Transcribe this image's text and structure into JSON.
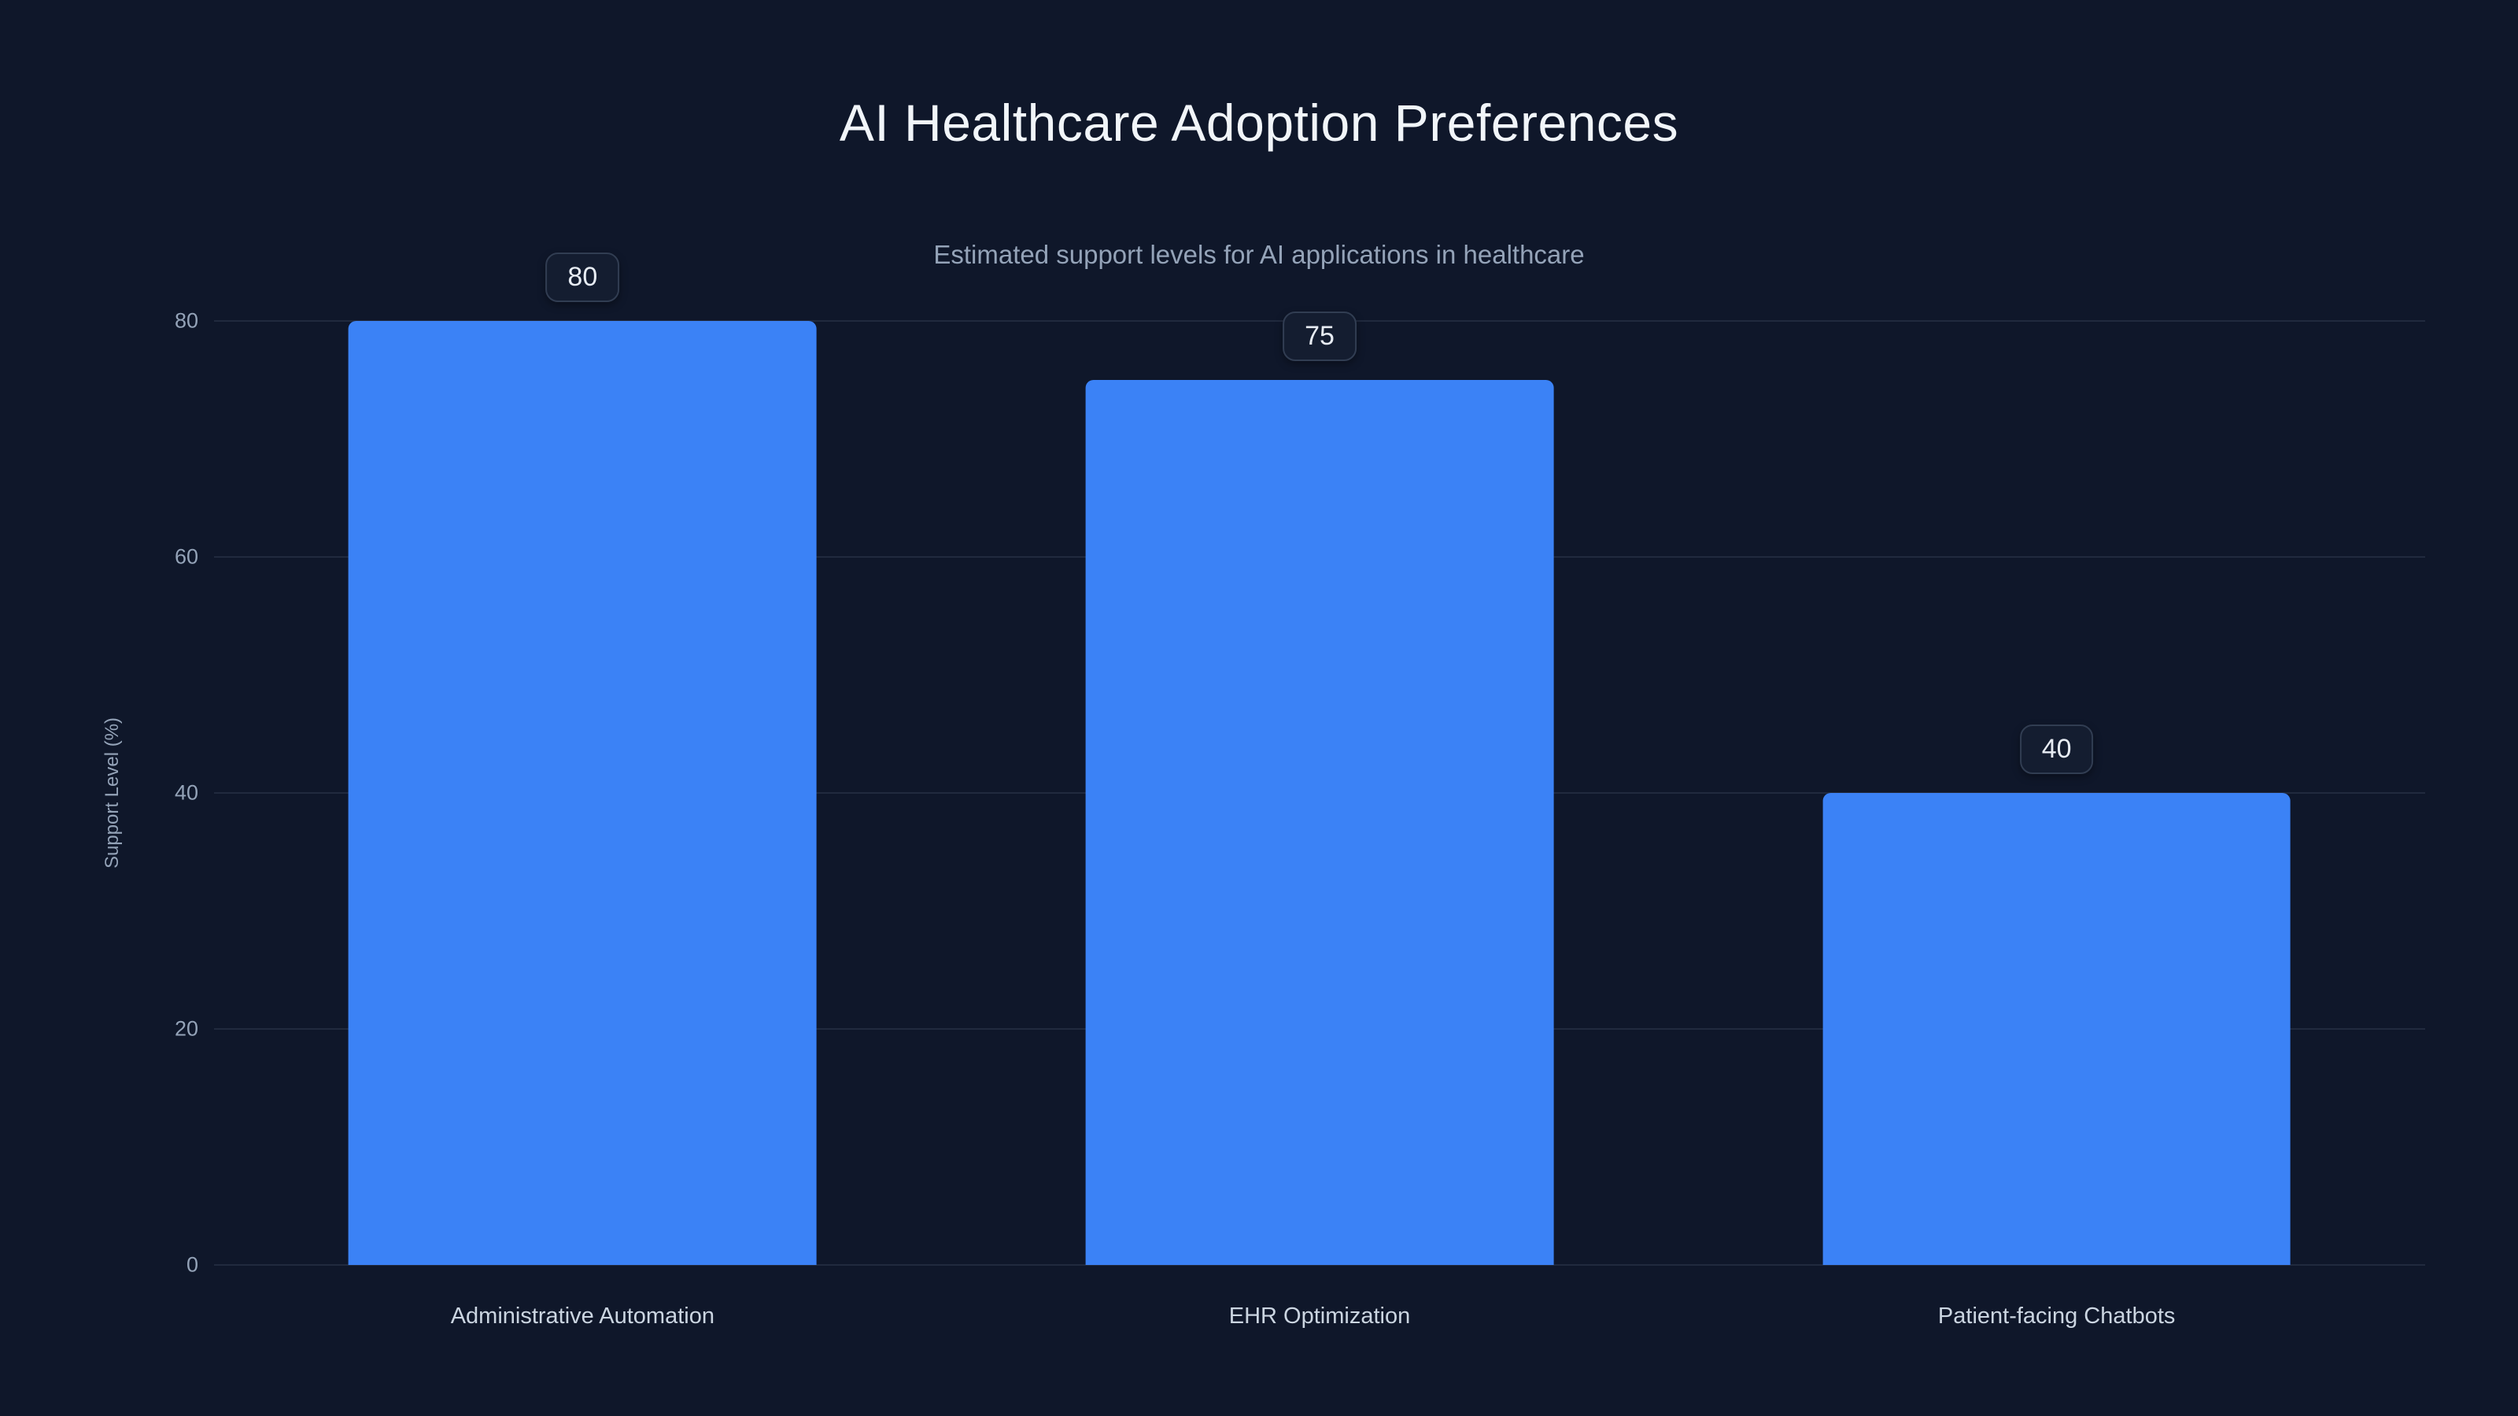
{
  "chart_data": {
    "type": "bar",
    "title": "AI Healthcare Adoption Preferences",
    "subtitle": "Estimated support levels for AI applications in healthcare",
    "categories": [
      "Administrative Automation",
      "EHR Optimization",
      "Patient-facing Chatbots"
    ],
    "values": [
      80,
      75,
      40
    ],
    "value_labels": [
      "80",
      "75",
      "40"
    ],
    "xlabel": "",
    "ylabel": "Support Level (%)",
    "ylim": [
      0,
      80
    ],
    "yticks": [
      0,
      20,
      40,
      60,
      80
    ],
    "grid": true,
    "legend": "none",
    "bar_color": "#3b82f6",
    "background": "#0f172a"
  },
  "colors": {
    "accent": "#3b82f6",
    "background": "#0f172a",
    "grid": "rgba(148,163,184,0.14)",
    "title_text": "#f1f5f9",
    "muted_text": "#94a3b8",
    "category_text": "#cbd5e1",
    "pill_bg": "#141d30",
    "pill_border": "#313d52"
  }
}
